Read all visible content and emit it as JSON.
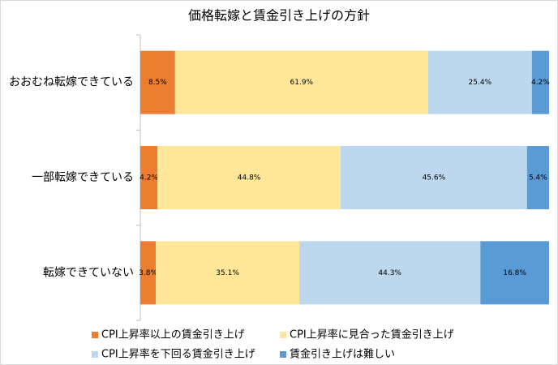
{
  "chart_data": {
    "type": "bar",
    "orientation": "horizontal",
    "stacked": true,
    "title": "価格転嫁と賃金引き上げの方針",
    "categories": [
      "おおむね転嫁できている",
      "一部転嫁できている",
      "転嫁できていない"
    ],
    "xlim": [
      0,
      100
    ],
    "series": [
      {
        "name": "CPI上昇率以上の賃金引き上げ",
        "color": "#ED7D31",
        "values": [
          8.5,
          4.2,
          3.8
        ],
        "value_labels": [
          "8.5%",
          "4.2%",
          "3.8%"
        ]
      },
      {
        "name": "CPI上昇率に見合った賃金引き上げ",
        "color": "#FFE699",
        "values": [
          61.9,
          44.8,
          35.1
        ],
        "value_labels": [
          "61.9%",
          "44.8%",
          "35.1%"
        ]
      },
      {
        "name": "CPI上昇率を下回る賃金引き上げ",
        "color": "#BDD7EE",
        "values": [
          25.4,
          45.6,
          44.3
        ],
        "value_labels": [
          "25.4%",
          "45.6%",
          "44.3%"
        ]
      },
      {
        "name": "賃金引き上げは難しい",
        "color": "#5B9BD5",
        "values": [
          4.2,
          5.4,
          16.8
        ],
        "value_labels": [
          "4.2%",
          "5.4%",
          "16.8%"
        ]
      }
    ]
  }
}
